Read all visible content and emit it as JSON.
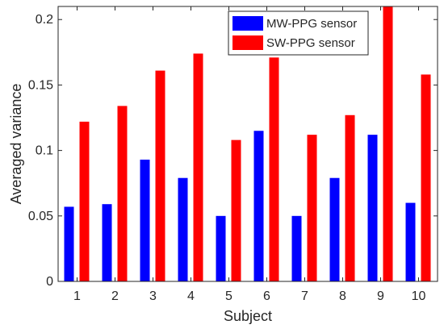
{
  "chart_data": {
    "type": "bar",
    "xlabel": "Subject",
    "ylabel": "Averaged variance",
    "categories": [
      "1",
      "2",
      "3",
      "4",
      "5",
      "6",
      "7",
      "8",
      "9",
      "10"
    ],
    "ylim": [
      0,
      0.21
    ],
    "yticks": [
      "0",
      "0.05",
      "0.1",
      "0.15",
      "0.2"
    ],
    "series": [
      {
        "name": "MW-PPG sensor",
        "color": "#0000ff",
        "values": [
          0.057,
          0.059,
          0.093,
          0.079,
          0.05,
          0.115,
          0.05,
          0.079,
          0.112,
          0.06
        ]
      },
      {
        "name": "SW-PPG sensor",
        "color": "#ff0000",
        "values": [
          0.122,
          0.134,
          0.161,
          0.174,
          0.108,
          0.171,
          0.112,
          0.127,
          0.21,
          0.158
        ]
      }
    ],
    "legend_position": "top-right",
    "grid": false
  }
}
